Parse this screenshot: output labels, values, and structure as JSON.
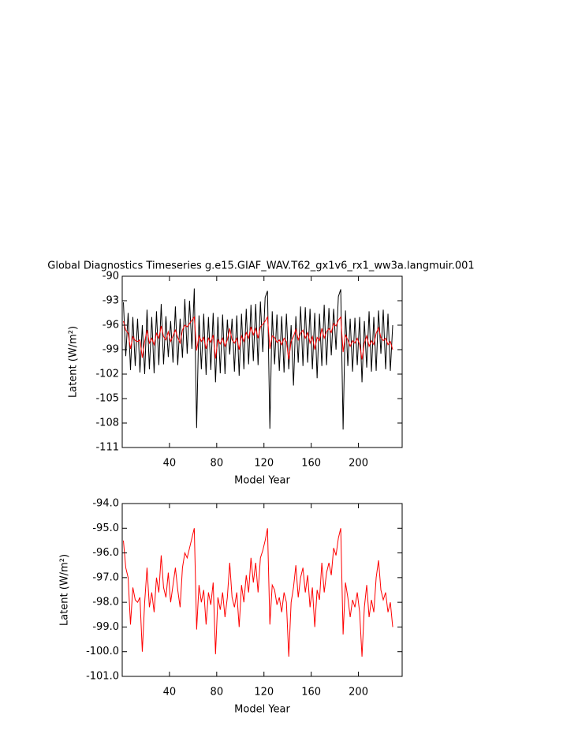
{
  "chart_data": [
    {
      "type": "line",
      "title": "Global Diagnostics Timeseries g.e15.GIAF_WAV.T62_gx1v6_rx1_ww3a.langmuir.001",
      "x_label": "Model Year",
      "y_label": "Latent (W/m²)",
      "x": [
        1,
        3,
        5,
        7,
        9,
        11,
        13,
        15,
        17,
        19,
        21,
        23,
        25,
        27,
        29,
        31,
        33,
        35,
        37,
        39,
        41,
        43,
        45,
        47,
        49,
        51,
        53,
        55,
        57,
        59,
        61,
        63,
        65,
        67,
        69,
        71,
        73,
        75,
        77,
        79,
        81,
        83,
        85,
        87,
        89,
        91,
        93,
        95,
        97,
        99,
        101,
        103,
        105,
        107,
        109,
        111,
        113,
        115,
        117,
        119,
        121,
        123,
        125,
        127,
        129,
        131,
        133,
        135,
        137,
        139,
        141,
        143,
        145,
        147,
        149,
        151,
        153,
        155,
        157,
        159,
        161,
        163,
        165,
        167,
        169,
        171,
        173,
        175,
        177,
        179,
        181,
        183,
        185,
        187,
        189,
        191,
        193,
        195,
        197,
        199,
        201,
        203,
        205,
        207,
        209,
        211,
        213,
        215,
        217,
        219,
        221,
        223,
        225,
        227,
        229
      ],
      "series": [
        {
          "color": "#000000",
          "values": [
            -93.2,
            -99.8,
            -94.5,
            -101.5,
            -95.0,
            -101.0,
            -95.2,
            -101.8,
            -96.0,
            -102.0,
            -94.1,
            -101.4,
            -95.0,
            -101.9,
            -94.3,
            -100.9,
            -93.4,
            -100.8,
            -94.9,
            -99.9,
            -95.5,
            -100.6,
            -93.7,
            -100.9,
            -95.2,
            -100.0,
            -92.8,
            -99.5,
            -93.0,
            -98.9,
            -91.5,
            -108.6,
            -94.8,
            -101.4,
            -94.6,
            -102.1,
            -95.0,
            -101.5,
            -94.5,
            -103.0,
            -95.0,
            -101.9,
            -94.7,
            -102.0,
            -95.3,
            -99.6,
            -95.2,
            -101.7,
            -94.8,
            -102.2,
            -94.6,
            -101.4,
            -94.0,
            -100.8,
            -93.5,
            -100.4,
            -93.4,
            -100.9,
            -93.1,
            -99.3,
            -92.6,
            -91.8,
            -108.7,
            -94.3,
            -100.8,
            -94.7,
            -101.6,
            -94.9,
            -101.8,
            -94.6,
            -101.4,
            -96.0,
            -103.4,
            -94.9,
            -100.6,
            -93.7,
            -101.0,
            -93.8,
            -100.6,
            -94.0,
            -101.4,
            -94.5,
            -102.5,
            -94.6,
            -101.0,
            -93.5,
            -100.9,
            -93.9,
            -99.7,
            -94.0,
            -99.0,
            -92.5,
            -91.6,
            -108.8,
            -94.2,
            -101.0,
            -95.2,
            -101.7,
            -95.1,
            -100.9,
            -95.0,
            -103.0,
            -95.5,
            -101.2,
            -94.3,
            -101.7,
            -95.0,
            -101.6,
            -94.2,
            -99.5,
            -94.1,
            -101.4,
            -94.6,
            -101.6,
            -96.0
          ]
        },
        {
          "color": "#ff0000",
          "values": [
            -95.5,
            -96.6,
            -97.0,
            -98.9,
            -97.4,
            -97.9,
            -98.0,
            -97.8,
            -100.0,
            -98.0,
            -96.6,
            -98.2,
            -97.6,
            -98.4,
            -97.0,
            -97.6,
            -96.1,
            -97.4,
            -97.8,
            -96.8,
            -98.0,
            -97.3,
            -96.6,
            -97.5,
            -98.2,
            -96.6,
            -96.0,
            -96.2,
            -95.8,
            -95.4,
            -95.0,
            -99.1,
            -97.3,
            -98.0,
            -97.5,
            -98.9,
            -97.6,
            -98.1,
            -97.2,
            -100.1,
            -97.8,
            -98.3,
            -97.6,
            -98.6,
            -97.8,
            -96.4,
            -97.8,
            -98.2,
            -97.6,
            -99.0,
            -97.3,
            -98.0,
            -96.9,
            -97.6,
            -96.2,
            -97.2,
            -96.4,
            -97.6,
            -96.2,
            -95.9,
            -95.5,
            -95.0,
            -98.9,
            -97.3,
            -97.5,
            -98.1,
            -97.8,
            -98.4,
            -97.6,
            -98.0,
            -100.2,
            -98.0,
            -97.4,
            -96.5,
            -97.8,
            -97.0,
            -96.6,
            -97.6,
            -96.9,
            -98.2,
            -97.4,
            -99.0,
            -97.5,
            -97.9,
            -96.4,
            -97.6,
            -96.8,
            -96.4,
            -96.9,
            -95.8,
            -96.1,
            -95.4,
            -95.0,
            -99.3,
            -97.2,
            -97.8,
            -98.6,
            -97.9,
            -98.2,
            -97.6,
            -98.4,
            -100.2,
            -98.2,
            -97.3,
            -98.6,
            -97.9,
            -98.4,
            -97.0,
            -96.3,
            -97.5,
            -97.9,
            -97.6,
            -98.4,
            -98.0,
            -99.0
          ]
        }
      ],
      "xlim": [
        0,
        237
      ],
      "xticks": [
        40,
        80,
        120,
        160,
        200
      ],
      "ylim": [
        -111,
        -90
      ],
      "yticks": [
        -111,
        -108,
        -105,
        -102,
        -99,
        -96,
        -93,
        -90
      ]
    },
    {
      "type": "line",
      "x_label": "Model Year",
      "y_label": "Latent (W/m²)",
      "x": [
        1,
        3,
        5,
        7,
        9,
        11,
        13,
        15,
        17,
        19,
        21,
        23,
        25,
        27,
        29,
        31,
        33,
        35,
        37,
        39,
        41,
        43,
        45,
        47,
        49,
        51,
        53,
        55,
        57,
        59,
        61,
        63,
        65,
        67,
        69,
        71,
        73,
        75,
        77,
        79,
        81,
        83,
        85,
        87,
        89,
        91,
        93,
        95,
        97,
        99,
        101,
        103,
        105,
        107,
        109,
        111,
        113,
        115,
        117,
        119,
        121,
        123,
        125,
        127,
        129,
        131,
        133,
        135,
        137,
        139,
        141,
        143,
        145,
        147,
        149,
        151,
        153,
        155,
        157,
        159,
        161,
        163,
        165,
        167,
        169,
        171,
        173,
        175,
        177,
        179,
        181,
        183,
        185,
        187,
        189,
        191,
        193,
        195,
        197,
        199,
        201,
        203,
        205,
        207,
        209,
        211,
        213,
        215,
        217,
        219,
        221,
        223,
        225,
        227,
        229
      ],
      "series": [
        {
          "color": "#ff0000",
          "values": [
            -95.5,
            -96.6,
            -97.0,
            -98.9,
            -97.4,
            -97.9,
            -98.0,
            -97.8,
            -100.0,
            -98.0,
            -96.6,
            -98.2,
            -97.6,
            -98.4,
            -97.0,
            -97.6,
            -96.1,
            -97.4,
            -97.8,
            -96.8,
            -98.0,
            -97.3,
            -96.6,
            -97.5,
            -98.2,
            -96.6,
            -96.0,
            -96.2,
            -95.8,
            -95.4,
            -95.0,
            -99.1,
            -97.3,
            -98.0,
            -97.5,
            -98.9,
            -97.6,
            -98.1,
            -97.2,
            -100.1,
            -97.8,
            -98.3,
            -97.6,
            -98.6,
            -97.8,
            -96.4,
            -97.8,
            -98.2,
            -97.6,
            -99.0,
            -97.3,
            -98.0,
            -96.9,
            -97.6,
            -96.2,
            -97.2,
            -96.4,
            -97.6,
            -96.2,
            -95.9,
            -95.5,
            -95.0,
            -98.9,
            -97.3,
            -97.5,
            -98.1,
            -97.8,
            -98.4,
            -97.6,
            -98.0,
            -100.2,
            -98.0,
            -97.4,
            -96.5,
            -97.8,
            -97.0,
            -96.6,
            -97.6,
            -96.9,
            -98.2,
            -97.4,
            -99.0,
            -97.5,
            -97.9,
            -96.4,
            -97.6,
            -96.8,
            -96.4,
            -96.9,
            -95.8,
            -96.1,
            -95.4,
            -95.0,
            -99.3,
            -97.2,
            -97.8,
            -98.6,
            -97.9,
            -98.2,
            -97.6,
            -98.4,
            -100.2,
            -98.2,
            -97.3,
            -98.6,
            -97.9,
            -98.4,
            -97.0,
            -96.3,
            -97.5,
            -97.9,
            -97.6,
            -98.4,
            -98.0,
            -99.0
          ]
        }
      ],
      "xlim": [
        0,
        237
      ],
      "xticks": [
        40,
        80,
        120,
        160,
        200
      ],
      "ylim": [
        -101,
        -94
      ],
      "yticks": [
        {
          "value": -101,
          "label": "-101.0"
        },
        {
          "value": -100,
          "label": "-100.0"
        },
        {
          "value": -99,
          "label": "-99.0"
        },
        {
          "value": -98,
          "label": "-98.0"
        },
        {
          "value": -97,
          "label": "-97.0"
        },
        {
          "value": -96,
          "label": "-96.0"
        },
        {
          "value": -95,
          "label": "-95.0"
        },
        {
          "value": -94,
          "label": "-94.0"
        }
      ]
    }
  ]
}
